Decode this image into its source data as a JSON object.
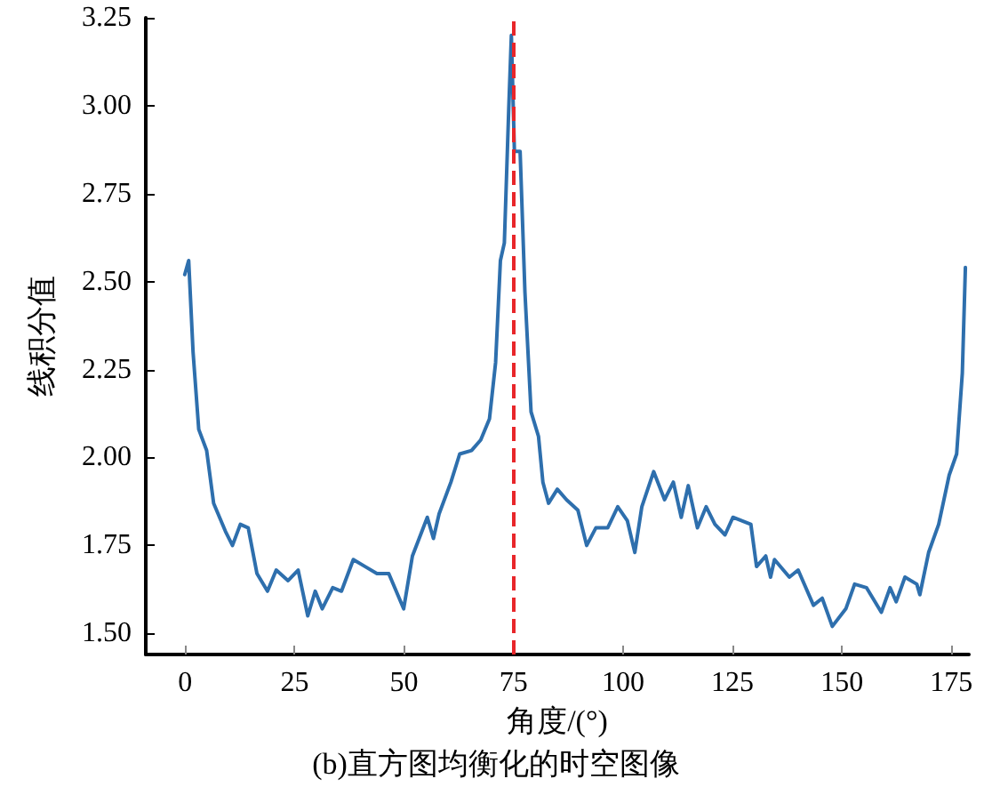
{
  "chart_data": {
    "type": "line",
    "title": "(b)直方图均衡化的时空图像",
    "xlabel": "角度/(°)",
    "ylabel": "线积分值",
    "xlim": [
      -9,
      179
    ],
    "xticks": [
      0,
      25,
      50,
      75,
      100,
      125,
      150,
      175
    ],
    "ylim": [
      1.44,
      3.25
    ],
    "yticks": [
      {
        "value": 1.5,
        "label": "1.50"
      },
      1.75,
      {
        "value": 2,
        "label": "2.00"
      },
      2.25,
      {
        "value": 2.5,
        "label": "2.50"
      },
      2.75,
      {
        "value": 3,
        "label": "3.00"
      },
      3.25
    ],
    "grid": false,
    "marker": "none",
    "line_style": "solid",
    "ref_lines": [
      {
        "axis": "x",
        "value": 75,
        "color": "#e8262a",
        "line_style": "dashed"
      }
    ],
    "series": [
      {
        "color": "#2e6fad",
        "x": [
          -0.1,
          0.8,
          1.8,
          3.1,
          4.9,
          6.5,
          9.2,
          10.8,
          12.6,
          14.4,
          16.4,
          18.8,
          20.8,
          23.5,
          25.8,
          28,
          29.7,
          31.3,
          33.7,
          35.7,
          38.4,
          41.1,
          43.8,
          46.5,
          49.9,
          51.9,
          55.3,
          56.7,
          58,
          60.7,
          62.7,
          65.4,
          67.5,
          69.5,
          70.9,
          72,
          72.9,
          73.9,
          74.5,
          75.2,
          76.5,
          77.6,
          79,
          80.7,
          81.7,
          83,
          85,
          87.1,
          89.7,
          91.7,
          93.8,
          96.5,
          98.8,
          101,
          102.7,
          104.3,
          107,
          109.5,
          111.5,
          113.3,
          114.9,
          117,
          119,
          121,
          123.3,
          125.1,
          129.2,
          130.5,
          132.6,
          133.7,
          134.6,
          138,
          140,
          143.5,
          145.5,
          147.8,
          150.9,
          152.9,
          155.6,
          159,
          161,
          162.4,
          164.4,
          167.1,
          167.8,
          169.8,
          172.1,
          174.5,
          176.2,
          177.5,
          178.2
        ],
        "values": [
          2.52,
          2.56,
          2.3,
          2.08,
          2.02,
          1.87,
          1.79,
          1.75,
          1.81,
          1.8,
          1.67,
          1.62,
          1.68,
          1.65,
          1.68,
          1.55,
          1.62,
          1.57,
          1.63,
          1.62,
          1.71,
          1.69,
          1.67,
          1.67,
          1.57,
          1.72,
          1.83,
          1.77,
          1.84,
          1.93,
          2.01,
          2.02,
          2.05,
          2.11,
          2.27,
          2.56,
          2.61,
          2.99,
          3.2,
          2.87,
          2.87,
          2.47,
          2.13,
          2.06,
          1.93,
          1.87,
          1.91,
          1.88,
          1.85,
          1.75,
          1.8,
          1.8,
          1.86,
          1.82,
          1.73,
          1.86,
          1.96,
          1.88,
          1.93,
          1.83,
          1.92,
          1.8,
          1.86,
          1.81,
          1.78,
          1.83,
          1.81,
          1.69,
          1.72,
          1.66,
          1.71,
          1.66,
          1.68,
          1.58,
          1.6,
          1.52,
          1.57,
          1.64,
          1.63,
          1.56,
          1.63,
          1.59,
          1.66,
          1.64,
          1.61,
          1.73,
          1.81,
          1.95,
          2.01,
          2.24,
          2.54
        ]
      }
    ]
  }
}
